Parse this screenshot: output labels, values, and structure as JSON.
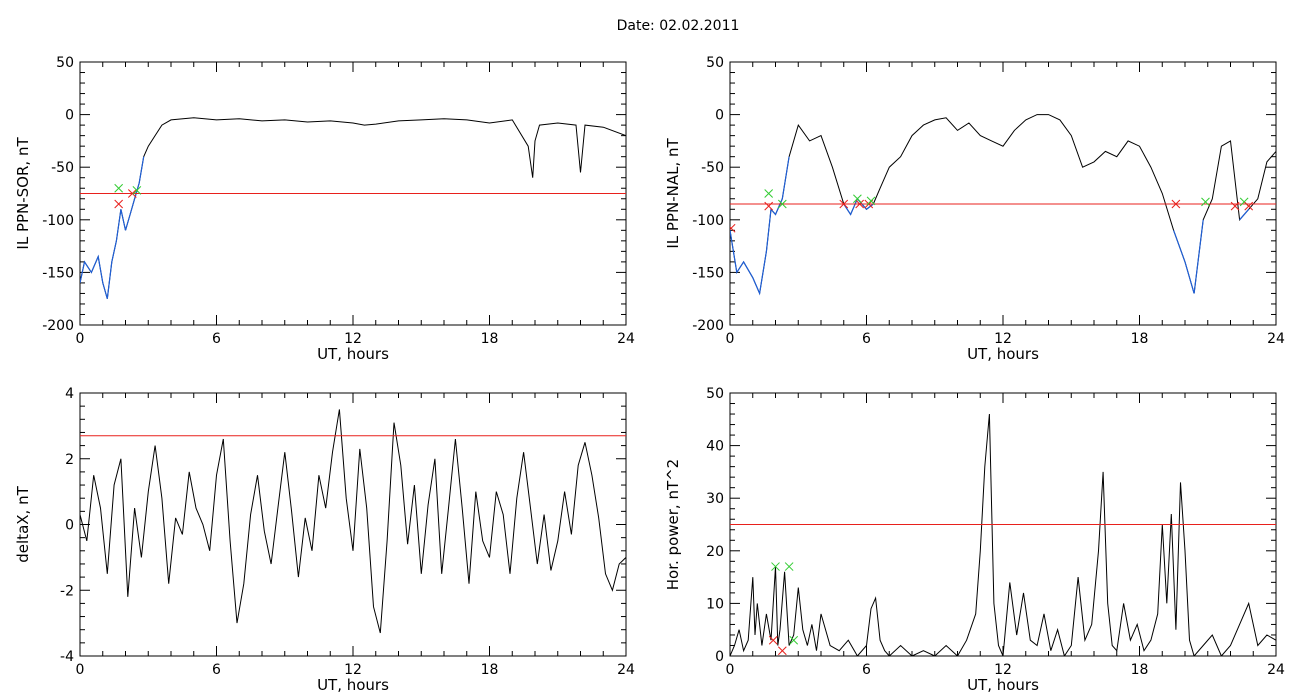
{
  "header": {
    "title": "Date:  02.02.2011"
  },
  "colors": {
    "trace": "#000000",
    "below_threshold_trace": "#1f5fd6",
    "threshold": "#e8201c",
    "marker_red": "#e8201c",
    "marker_green": "#33cc33"
  },
  "chart_data": [
    {
      "id": "ppn-sor",
      "type": "line",
      "xlabel": "UT, hours",
      "ylabel": "IL PPN-SOR, nT",
      "xlim": [
        0,
        24
      ],
      "ylim": [
        -200,
        50
      ],
      "xticks": [
        0,
        6,
        12,
        18,
        24
      ],
      "yticks": [
        -200,
        -150,
        -100,
        -50,
        0,
        50
      ],
      "threshold": -75,
      "x": [
        0,
        0.2,
        0.5,
        0.8,
        1.0,
        1.2,
        1.4,
        1.6,
        1.8,
        2.0,
        2.2,
        2.4,
        2.6,
        2.8,
        3.0,
        3.3,
        3.6,
        4.0,
        5,
        6,
        7,
        8,
        9,
        10,
        11,
        12,
        12.5,
        13,
        14,
        15,
        16,
        17,
        18,
        19,
        19.7,
        19.9,
        20.0,
        20.2,
        21,
        21.8,
        22.0,
        22.2,
        23,
        24
      ],
      "y": [
        -160,
        -140,
        -150,
        -135,
        -160,
        -175,
        -140,
        -120,
        -90,
        -110,
        -95,
        -80,
        -65,
        -40,
        -30,
        -20,
        -10,
        -5,
        -3,
        -5,
        -4,
        -6,
        -5,
        -7,
        -6,
        -8,
        -10,
        -9,
        -6,
        -5,
        -4,
        -5,
        -8,
        -5,
        -30,
        -60,
        -25,
        -10,
        -8,
        -10,
        -55,
        -10,
        -12,
        -20
      ],
      "below_threshold_end": 2.8,
      "markers": [
        {
          "x": 1.7,
          "y": -85,
          "color": "red"
        },
        {
          "x": 1.7,
          "y": -70,
          "color": "green"
        },
        {
          "x": 2.3,
          "y": -75,
          "color": "red"
        },
        {
          "x": 2.5,
          "y": -72,
          "color": "green"
        }
      ]
    },
    {
      "id": "ppn-nal",
      "type": "line",
      "xlabel": "UT, hours",
      "ylabel": "IL PPN-NAL, nT",
      "xlim": [
        0,
        24
      ],
      "ylim": [
        -200,
        50
      ],
      "xticks": [
        0,
        6,
        12,
        18,
        24
      ],
      "yticks": [
        -200,
        -150,
        -100,
        -50,
        0,
        50
      ],
      "threshold": -85,
      "x": [
        0,
        0.3,
        0.6,
        1.0,
        1.3,
        1.6,
        1.8,
        2.0,
        2.3,
        2.6,
        3.0,
        3.5,
        4.0,
        4.5,
        5.0,
        5.3,
        5.6,
        6.0,
        6.3,
        6.6,
        7,
        7.5,
        8,
        8.5,
        9,
        9.5,
        10,
        10.5,
        11,
        11.5,
        12,
        12.5,
        13,
        13.5,
        14,
        14.5,
        15,
        15.5,
        16,
        16.5,
        17,
        17.5,
        18,
        18.5,
        19,
        19.5,
        20.0,
        20.4,
        20.8,
        21.2,
        21.6,
        22.0,
        22.4,
        22.8,
        23.2,
        23.6,
        24
      ],
      "y": [
        -110,
        -150,
        -140,
        -155,
        -170,
        -130,
        -90,
        -95,
        -80,
        -40,
        -10,
        -25,
        -20,
        -50,
        -85,
        -95,
        -80,
        -90,
        -85,
        -70,
        -50,
        -40,
        -20,
        -10,
        -5,
        -3,
        -15,
        -8,
        -20,
        -25,
        -30,
        -15,
        -5,
        0,
        0,
        -5,
        -20,
        -50,
        -45,
        -35,
        -40,
        -25,
        -30,
        -50,
        -75,
        -110,
        -140,
        -170,
        -100,
        -80,
        -30,
        -25,
        -100,
        -90,
        -80,
        -45,
        -35
      ],
      "below_threshold_segments": [
        [
          0,
          2.6
        ],
        [
          4.9,
          6.3
        ],
        [
          19.3,
          21.0
        ],
        [
          22.2,
          23.0
        ]
      ],
      "markers": [
        {
          "x": 0.05,
          "y": -108,
          "color": "red"
        },
        {
          "x": 1.7,
          "y": -87,
          "color": "red"
        },
        {
          "x": 1.7,
          "y": -75,
          "color": "green"
        },
        {
          "x": 2.3,
          "y": -85,
          "color": "green"
        },
        {
          "x": 5.0,
          "y": -85,
          "color": "red"
        },
        {
          "x": 5.7,
          "y": -85,
          "color": "red"
        },
        {
          "x": 5.6,
          "y": -80,
          "color": "green"
        },
        {
          "x": 6.1,
          "y": -85,
          "color": "red"
        },
        {
          "x": 6.2,
          "y": -82,
          "color": "green"
        },
        {
          "x": 19.6,
          "y": -85,
          "color": "red"
        },
        {
          "x": 20.9,
          "y": -83,
          "color": "green"
        },
        {
          "x": 22.2,
          "y": -87,
          "color": "red"
        },
        {
          "x": 22.6,
          "y": -83,
          "color": "green"
        },
        {
          "x": 22.8,
          "y": -87,
          "color": "red"
        }
      ]
    },
    {
      "id": "deltax",
      "type": "line",
      "xlabel": "UT, hours",
      "ylabel": "deltaX, nT",
      "xlim": [
        0,
        24
      ],
      "ylim": [
        -4,
        4
      ],
      "xticks": [
        0,
        6,
        12,
        18,
        24
      ],
      "yticks": [
        -4,
        -2,
        0,
        2,
        4
      ],
      "threshold": 2.7,
      "x": [
        0,
        0.3,
        0.6,
        0.9,
        1.2,
        1.5,
        1.8,
        2.1,
        2.4,
        2.7,
        3.0,
        3.3,
        3.6,
        3.9,
        4.2,
        4.5,
        4.8,
        5.1,
        5.4,
        5.7,
        6.0,
        6.3,
        6.6,
        6.9,
        7.2,
        7.5,
        7.8,
        8.1,
        8.4,
        8.7,
        9.0,
        9.3,
        9.6,
        9.9,
        10.2,
        10.5,
        10.8,
        11.1,
        11.4,
        11.7,
        12.0,
        12.3,
        12.6,
        12.9,
        13.2,
        13.5,
        13.8,
        14.1,
        14.4,
        14.7,
        15.0,
        15.3,
        15.6,
        15.9,
        16.2,
        16.5,
        16.8,
        17.1,
        17.4,
        17.7,
        18.0,
        18.3,
        18.6,
        18.9,
        19.2,
        19.5,
        19.8,
        20.1,
        20.4,
        20.7,
        21.0,
        21.3,
        21.6,
        21.9,
        22.2,
        22.5,
        22.8,
        23.1,
        23.4,
        23.7,
        24.0
      ],
      "y": [
        0.3,
        -0.5,
        1.5,
        0.5,
        -1.5,
        1.2,
        2.0,
        -2.2,
        0.5,
        -1.0,
        1.0,
        2.4,
        0.8,
        -1.8,
        0.2,
        -0.3,
        1.6,
        0.5,
        0.0,
        -0.8,
        1.5,
        2.6,
        -0.5,
        -3.0,
        -1.8,
        0.3,
        1.5,
        -0.2,
        -1.2,
        0.5,
        2.2,
        0.4,
        -1.6,
        0.2,
        -0.8,
        1.5,
        0.5,
        2.2,
        3.5,
        0.8,
        -0.8,
        2.3,
        0.5,
        -2.5,
        -3.3,
        -0.5,
        3.1,
        1.8,
        -0.6,
        1.2,
        -1.5,
        0.6,
        2.0,
        -1.5,
        0.5,
        2.6,
        0.5,
        -1.8,
        1.0,
        -0.5,
        -1.0,
        1.0,
        0.3,
        -1.5,
        0.8,
        2.2,
        0.5,
        -1.2,
        0.3,
        -1.4,
        -0.5,
        1.0,
        -0.3,
        1.8,
        2.5,
        1.5,
        0.2,
        -1.5,
        -2.0,
        -1.2,
        -1.0
      ]
    },
    {
      "id": "hor-power",
      "type": "line",
      "xlabel": "UT, hours",
      "ylabel": "Hor. power, nT^2",
      "xlim": [
        0,
        24
      ],
      "ylim": [
        0,
        50
      ],
      "xticks": [
        0,
        6,
        12,
        18,
        24
      ],
      "yticks": [
        0,
        10,
        20,
        30,
        40,
        50
      ],
      "threshold": 25,
      "x": [
        0,
        0.2,
        0.4,
        0.6,
        0.8,
        1.0,
        1.1,
        1.2,
        1.4,
        1.6,
        1.8,
        2.0,
        2.1,
        2.2,
        2.4,
        2.6,
        2.8,
        3.0,
        3.2,
        3.4,
        3.6,
        3.8,
        4.0,
        4.4,
        4.8,
        5.2,
        5.6,
        6.0,
        6.2,
        6.4,
        6.6,
        6.8,
        7.0,
        7.5,
        8.0,
        8.5,
        9.0,
        9.5,
        10.0,
        10.4,
        10.8,
        11.0,
        11.2,
        11.4,
        11.6,
        11.8,
        12.0,
        12.3,
        12.6,
        12.9,
        13.2,
        13.5,
        13.8,
        14.1,
        14.4,
        14.7,
        15.0,
        15.3,
        15.6,
        15.9,
        16.2,
        16.4,
        16.6,
        16.8,
        17.0,
        17.3,
        17.6,
        17.9,
        18.2,
        18.5,
        18.8,
        19.0,
        19.2,
        19.4,
        19.6,
        19.8,
        20.0,
        20.2,
        20.4,
        20.8,
        21.2,
        21.6,
        22.0,
        22.4,
        22.8,
        23.2,
        23.6,
        24.0
      ],
      "y": [
        0,
        2,
        5,
        1,
        3,
        15,
        4,
        10,
        2,
        8,
        3,
        17,
        2,
        5,
        16,
        2,
        4,
        13,
        5,
        2,
        6,
        1,
        8,
        2,
        1,
        3,
        0,
        2,
        9,
        11,
        3,
        1,
        0,
        2,
        0,
        1,
        0,
        2,
        0,
        3,
        8,
        20,
        36,
        46,
        10,
        2,
        0,
        14,
        4,
        12,
        3,
        2,
        8,
        1,
        5,
        0,
        2,
        15,
        3,
        6,
        20,
        35,
        10,
        2,
        1,
        10,
        3,
        6,
        1,
        3,
        8,
        25,
        10,
        27,
        5,
        33,
        20,
        3,
        0,
        2,
        4,
        0,
        2,
        6,
        10,
        2,
        4,
        3
      ]
    }
  ],
  "power_markers": [
    {
      "x": 1.9,
      "y": 3,
      "color": "red"
    },
    {
      "x": 2.0,
      "y": 17,
      "color": "green"
    },
    {
      "x": 2.3,
      "y": 1,
      "color": "red"
    },
    {
      "x": 2.6,
      "y": 17,
      "color": "green"
    },
    {
      "x": 2.8,
      "y": 3,
      "color": "green"
    }
  ]
}
